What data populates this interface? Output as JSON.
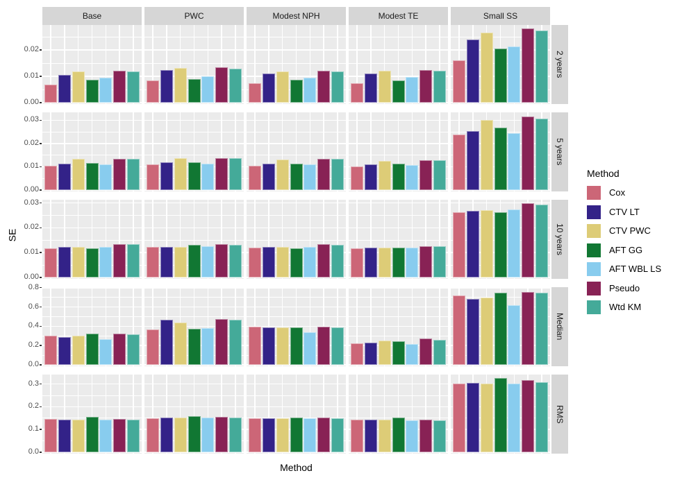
{
  "figure": {
    "xlabel": "Method",
    "ylabel": "SE",
    "legend_title": "Method"
  },
  "colors": {
    "panel_bg": "#EBEBEB",
    "strip_bg": "#D6D6D6",
    "grid": "#FFFFFF",
    "tick_text": "#4D4D4D",
    "strip_text": "#1A1A1A",
    "axis_text": "#000000",
    "series": [
      "#CC6677",
      "#332288",
      "#DDCC77",
      "#117733",
      "#88CCEE",
      "#882255",
      "#44AA99"
    ]
  },
  "chart_data": {
    "type": "bar",
    "title": "",
    "xlabel": "Method",
    "ylabel": "SE",
    "legend_title": "Method",
    "legend_position": "right",
    "grid": "on",
    "facet_columns": [
      "Base",
      "PWC",
      "Modest NPH",
      "Modest TE",
      "Small SS"
    ],
    "facet_rows": [
      "2 years",
      "5 years",
      "10 years",
      "Median",
      "RMS"
    ],
    "series": [
      "Cox",
      "CTV LT",
      "CTV PWC",
      "AFT GG",
      "AFT WBL LS",
      "Pseudo",
      "Wtd KM"
    ],
    "series_colors": {
      "Cox": "#CC6677",
      "CTV LT": "#332288",
      "CTV PWC": "#DDCC77",
      "AFT GG": "#117733",
      "AFT WBL LS": "#88CCEE",
      "Pseudo": "#882255",
      "Wtd KM": "#44AA99"
    },
    "rows": [
      {
        "facet_row": "2 years",
        "ylim": [
          0,
          0.0295
        ],
        "tick_values": [
          0,
          0.01,
          0.02
        ],
        "tick_labels": [
          "0.00",
          "0.01",
          "0.02"
        ],
        "minor_step": 0.005,
        "values": {
          "Base": [
            0.0069,
            0.0106,
            0.0118,
            0.0088,
            0.0096,
            0.0121,
            0.0118
          ],
          "PWC": [
            0.0083,
            0.0125,
            0.0131,
            0.0089,
            0.01,
            0.0134,
            0.013
          ],
          "Modest NPH": [
            0.0073,
            0.011,
            0.0119,
            0.0087,
            0.0096,
            0.0121,
            0.0119
          ],
          "Modest TE": [
            0.0073,
            0.011,
            0.0121,
            0.0085,
            0.0097,
            0.0123,
            0.012
          ],
          "Small SS": [
            0.016,
            0.024,
            0.0265,
            0.0206,
            0.0214,
            0.0281,
            0.0273
          ]
        }
      },
      {
        "facet_row": "5 years",
        "ylim": [
          0,
          0.0334
        ],
        "tick_values": [
          0,
          0.01,
          0.02,
          0.03
        ],
        "tick_labels": [
          "0.00",
          "0.01",
          "0.02",
          "0.03"
        ],
        "minor_step": 0.005,
        "values": {
          "Base": [
            0.0103,
            0.0112,
            0.0133,
            0.0117,
            0.0109,
            0.0135,
            0.0134
          ],
          "PWC": [
            0.011,
            0.012,
            0.0136,
            0.0119,
            0.0113,
            0.0138,
            0.0137
          ],
          "Modest NPH": [
            0.0103,
            0.0113,
            0.0131,
            0.0112,
            0.0109,
            0.0133,
            0.0133
          ],
          "Modest TE": [
            0.0102,
            0.0109,
            0.0126,
            0.0113,
            0.0107,
            0.0129,
            0.0128
          ],
          "Small SS": [
            0.0238,
            0.0253,
            0.0301,
            0.0268,
            0.0246,
            0.0317,
            0.0308
          ]
        }
      },
      {
        "facet_row": "10 years",
        "ylim": [
          0,
          0.0313
        ],
        "tick_values": [
          0,
          0.01,
          0.02,
          0.03
        ],
        "tick_labels": [
          "0.00",
          "0.01",
          "0.02",
          "0.03"
        ],
        "minor_step": 0.005,
        "values": {
          "Base": [
            0.0117,
            0.0122,
            0.0122,
            0.0118,
            0.0122,
            0.0135,
            0.0133
          ],
          "PWC": [
            0.0123,
            0.0123,
            0.0124,
            0.0131,
            0.0126,
            0.0133,
            0.0132
          ],
          "Modest NPH": [
            0.0119,
            0.0122,
            0.0122,
            0.0116,
            0.0122,
            0.0134,
            0.0132
          ],
          "Modest TE": [
            0.0117,
            0.0121,
            0.0121,
            0.012,
            0.0121,
            0.0127,
            0.0127
          ],
          "Small SS": [
            0.0262,
            0.0268,
            0.0272,
            0.0264,
            0.0273,
            0.0298,
            0.0293
          ]
        }
      },
      {
        "facet_row": "Median",
        "ylim": [
          0,
          0.805
        ],
        "tick_values": [
          0,
          0.2,
          0.4,
          0.6,
          0.8
        ],
        "tick_labels": [
          "0.0",
          "0.2",
          "0.4",
          "0.6",
          "0.8"
        ],
        "minor_step": 0.1,
        "values": {
          "Base": [
            0.305,
            0.29,
            0.3,
            0.325,
            0.268,
            0.32,
            0.313
          ],
          "PWC": [
            0.365,
            0.467,
            0.44,
            0.372,
            0.382,
            0.474,
            0.467
          ],
          "Modest NPH": [
            0.395,
            0.385,
            0.385,
            0.39,
            0.34,
            0.395,
            0.39
          ],
          "Modest TE": [
            0.225,
            0.232,
            0.248,
            0.243,
            0.218,
            0.272,
            0.262
          ],
          "Small SS": [
            0.72,
            0.685,
            0.695,
            0.75,
            0.615,
            0.757,
            0.745
          ]
        }
      },
      {
        "facet_row": "RMS",
        "ylim": [
          0,
          0.3415
        ],
        "tick_values": [
          0,
          0.1,
          0.2,
          0.3
        ],
        "tick_labels": [
          "0.0",
          "0.1",
          "0.2",
          "0.3"
        ],
        "minor_step": 0.05,
        "values": {
          "Base": [
            0.145,
            0.144,
            0.144,
            0.155,
            0.144,
            0.147,
            0.144
          ],
          "PWC": [
            0.15,
            0.153,
            0.151,
            0.16,
            0.151,
            0.155,
            0.152
          ],
          "Modest NPH": [
            0.148,
            0.149,
            0.148,
            0.152,
            0.148,
            0.151,
            0.15
          ],
          "Modest TE": [
            0.142,
            0.142,
            0.142,
            0.152,
            0.141,
            0.143,
            0.141
          ],
          "Small SS": [
            0.302,
            0.304,
            0.302,
            0.325,
            0.302,
            0.317,
            0.307
          ]
        }
      }
    ]
  }
}
